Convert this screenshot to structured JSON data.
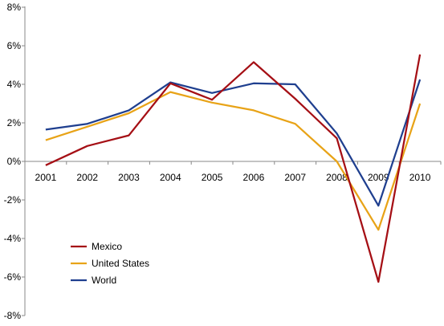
{
  "chart_data": {
    "type": "line",
    "title": "",
    "xlabel": "",
    "ylabel": "",
    "categories": [
      "2001",
      "2002",
      "2003",
      "2004",
      "2005",
      "2006",
      "2007",
      "2008",
      "2009",
      "2010"
    ],
    "ylim": [
      -8,
      8
    ],
    "yticks": [
      -8,
      -6,
      -4,
      -2,
      0,
      2,
      4,
      6,
      8
    ],
    "ytick_labels": [
      "-8%",
      "-6%",
      "-4%",
      "-2%",
      "0%",
      "2%",
      "4%",
      "6%",
      "8%"
    ],
    "grid": false,
    "legend_position": "bottom-left",
    "series": [
      {
        "name": "Mexico",
        "color": "#a50f15",
        "values": [
          -0.2,
          0.8,
          1.35,
          4.05,
          3.2,
          5.15,
          3.25,
          1.2,
          -6.25,
          5.55
        ]
      },
      {
        "name": "United States",
        "color": "#e8a317",
        "values": [
          1.1,
          1.8,
          2.5,
          3.6,
          3.05,
          2.65,
          1.95,
          0.0,
          -3.55,
          3.0
        ]
      },
      {
        "name": "World",
        "color": "#1f3f8f",
        "values": [
          1.65,
          1.95,
          2.65,
          4.1,
          3.55,
          4.05,
          4.0,
          1.45,
          -2.3,
          4.25
        ]
      }
    ]
  }
}
